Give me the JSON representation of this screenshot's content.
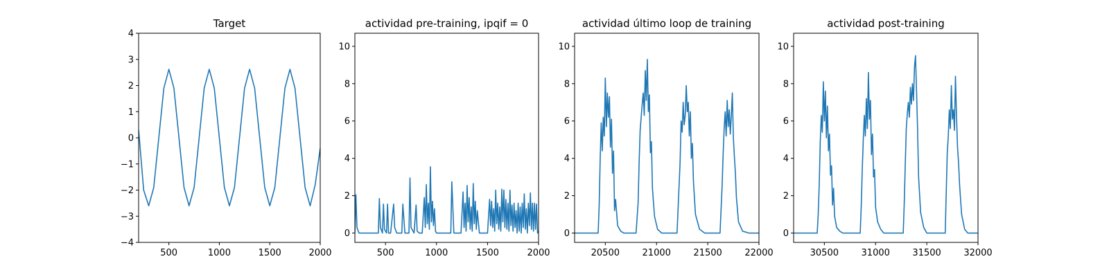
{
  "colors": {
    "line": "#1f77b4",
    "axes": "#000000",
    "background": "#ffffff"
  },
  "chart_data": [
    {
      "type": "line",
      "title": "Target",
      "xlim": [
        200,
        2000
      ],
      "ylim": [
        -4,
        4
      ],
      "xticks": [
        500,
        1000,
        1500,
        2000
      ],
      "yticks": [
        -4,
        -3,
        -2,
        -1,
        0,
        1,
        2,
        3,
        4
      ],
      "grid": false,
      "series": [
        {
          "x": [
            200,
            250,
            300,
            350,
            400,
            450,
            500,
            550,
            600,
            650,
            700,
            750,
            800,
            850,
            900,
            950,
            1000,
            1050,
            1100,
            1150,
            1200,
            1250,
            1300,
            1350,
            1400,
            1450,
            1500,
            1550,
            1600,
            1650,
            1700,
            1750,
            1800,
            1850,
            1900,
            1950,
            2000
          ],
          "y": [
            0.3,
            -2.0,
            -2.6,
            -1.9,
            0.0,
            1.9,
            2.62,
            1.9,
            0.0,
            -1.9,
            -2.6,
            -1.9,
            0.0,
            1.9,
            2.62,
            1.9,
            0.0,
            -1.9,
            -2.6,
            -1.9,
            0.0,
            1.9,
            2.62,
            1.9,
            0.0,
            -1.9,
            -2.6,
            -1.9,
            0.0,
            1.9,
            2.62,
            1.9,
            0.0,
            -1.9,
            -2.6,
            -1.8,
            -0.4
          ]
        }
      ]
    },
    {
      "type": "line",
      "title": "actividad pre-training, ipqif = 0",
      "xlim": [
        200,
        2000
      ],
      "ylim": [
        -0.5,
        10.7
      ],
      "xticks": [
        500,
        1000,
        1500,
        2000
      ],
      "yticks": [
        0,
        2,
        4,
        6,
        8,
        10
      ],
      "grid": false,
      "series": [
        {
          "x": [
            200,
            210,
            220,
            240,
            430,
            440,
            450,
            470,
            480,
            490,
            510,
            520,
            530,
            550,
            580,
            590,
            610,
            660,
            670,
            690,
            730,
            740,
            750,
            780,
            800,
            810,
            830,
            860,
            880,
            890,
            900,
            910,
            920,
            930,
            940,
            950,
            960,
            970,
            980,
            990,
            1000,
            1020,
            1140,
            1150,
            1170,
            1240,
            1260,
            1270,
            1280,
            1290,
            1300,
            1310,
            1320,
            1330,
            1340,
            1350,
            1360,
            1370,
            1380,
            1390,
            1400,
            1420,
            1500,
            1520,
            1530,
            1540,
            1550,
            1560,
            1570,
            1580,
            1590,
            1600,
            1610,
            1620,
            1630,
            1640,
            1650,
            1660,
            1670,
            1680,
            1690,
            1700,
            1710,
            1720,
            1730,
            1740,
            1750,
            1760,
            1770,
            1780,
            1790,
            1800,
            1810,
            1820,
            1830,
            1840,
            1850,
            1860,
            1870,
            1880,
            1890,
            1900,
            1910,
            1920,
            1930,
            1940,
            1950,
            1960,
            1970,
            1980,
            1990,
            2000
          ],
          "y": [
            0.0,
            2.05,
            0.3,
            0.0,
            0.0,
            1.85,
            0.3,
            0.0,
            1.55,
            0.2,
            0.0,
            1.55,
            0.0,
            0.0,
            1.55,
            0.3,
            0.0,
            0.0,
            1.55,
            0.0,
            0.0,
            2.95,
            0.3,
            0.0,
            1.5,
            0.1,
            0.0,
            0.0,
            1.9,
            0.3,
            2.6,
            0.5,
            1.6,
            0.2,
            3.55,
            0.6,
            1.7,
            0.4,
            1.3,
            0.1,
            0.0,
            0.0,
            0.0,
            2.75,
            0.0,
            0.0,
            2.2,
            0.3,
            1.6,
            0.1,
            2.55,
            0.6,
            1.9,
            0.2,
            1.4,
            0.1,
            2.65,
            0.5,
            1.7,
            0.2,
            1.2,
            0.0,
            0.0,
            1.8,
            0.4,
            1.7,
            0.3,
            1.3,
            0.1,
            2.3,
            0.5,
            1.6,
            0.2,
            1.4,
            0.1,
            2.35,
            0.6,
            2.3,
            0.3,
            1.8,
            0.2,
            1.6,
            0.1,
            2.3,
            0.4,
            1.5,
            0.1,
            1.6,
            0.3,
            1.2,
            0.0,
            1.6,
            0.1,
            1.4,
            0.0,
            1.6,
            0.3,
            2.1,
            0.2,
            1.3,
            0.0,
            1.6,
            0.4,
            2.15,
            0.2,
            1.6,
            0.1,
            1.6,
            0.2,
            1.55,
            0.0,
            0.1
          ]
        }
      ]
    },
    {
      "type": "line",
      "title": "actividad último loop de training",
      "xlim": [
        20200,
        22000
      ],
      "ylim": [
        -0.5,
        10.7
      ],
      "xticks": [
        20500,
        21000,
        21500,
        22000
      ],
      "yticks": [
        0,
        2,
        4,
        6,
        8,
        10
      ],
      "grid": false,
      "series": [
        {
          "x": [
            20200,
            20430,
            20440,
            20450,
            20460,
            20470,
            20480,
            20490,
            20500,
            20510,
            20520,
            20530,
            20540,
            20550,
            20560,
            20570,
            20580,
            20590,
            20600,
            20620,
            20650,
            20680,
            20800,
            20820,
            20830,
            20840,
            20850,
            20860,
            20870,
            20880,
            20890,
            20900,
            20910,
            20920,
            20930,
            20940,
            20950,
            20960,
            20980,
            21010,
            21050,
            21200,
            21230,
            21240,
            21250,
            21260,
            21270,
            21280,
            21290,
            21300,
            21310,
            21320,
            21330,
            21340,
            21350,
            21360,
            21380,
            21420,
            21470,
            21620,
            21640,
            21650,
            21660,
            21670,
            21680,
            21690,
            21700,
            21710,
            21720,
            21730,
            21740,
            21750,
            21760,
            21770,
            21780,
            21800,
            21840,
            21900,
            22000
          ],
          "y": [
            0.0,
            0.0,
            1.5,
            4.0,
            5.9,
            4.4,
            6.2,
            5.2,
            8.3,
            5.7,
            7.5,
            6.2,
            7.3,
            4.6,
            6.1,
            3.2,
            4.4,
            1.2,
            1.8,
            0.4,
            0.1,
            0.0,
            0.0,
            1.6,
            3.8,
            5.5,
            6.2,
            6.9,
            7.5,
            6.3,
            8.7,
            7.1,
            9.3,
            6.5,
            7.4,
            4.3,
            4.9,
            2.4,
            0.9,
            0.2,
            0.0,
            0.0,
            3.8,
            6.0,
            5.4,
            7.0,
            5.8,
            6.3,
            7.9,
            6.5,
            7.0,
            5.2,
            6.5,
            4.0,
            4.8,
            2.8,
            1.0,
            0.2,
            0.0,
            0.0,
            2.5,
            4.2,
            5.6,
            6.5,
            5.2,
            7.1,
            5.7,
            6.6,
            5.3,
            6.3,
            7.5,
            5.1,
            4.1,
            3.2,
            1.9,
            0.6,
            0.1,
            0.0,
            0.0
          ]
        }
      ]
    },
    {
      "type": "line",
      "title": "actividad post-training",
      "xlim": [
        30200,
        32000
      ],
      "ylim": [
        -0.5,
        10.7
      ],
      "xticks": [
        30500,
        31000,
        31500,
        32000
      ],
      "yticks": [
        0,
        2,
        4,
        6,
        8,
        10
      ],
      "grid": false,
      "series": [
        {
          "x": [
            30200,
            30430,
            30440,
            30450,
            30460,
            30470,
            30480,
            30490,
            30500,
            30510,
            30520,
            30530,
            30540,
            30550,
            30560,
            30570,
            30580,
            30590,
            30600,
            30620,
            30650,
            30680,
            30850,
            30860,
            30870,
            30880,
            30890,
            30900,
            30910,
            30920,
            30930,
            30940,
            30950,
            30960,
            30970,
            30980,
            30990,
            31000,
            31020,
            31050,
            31080,
            31270,
            31280,
            31290,
            31300,
            31310,
            31320,
            31330,
            31340,
            31350,
            31360,
            31370,
            31380,
            31390,
            31400,
            31410,
            31420,
            31440,
            31470,
            31500,
            31680,
            31690,
            31700,
            31710,
            31720,
            31730,
            31740,
            31750,
            31760,
            31770,
            31780,
            31790,
            31800,
            31810,
            31820,
            31840,
            31870,
            31900,
            32000
          ],
          "y": [
            0.0,
            0.0,
            1.0,
            2.6,
            4.9,
            6.3,
            5.4,
            8.1,
            6.0,
            7.6,
            5.1,
            6.8,
            4.4,
            5.3,
            3.1,
            3.6,
            1.5,
            2.4,
            0.9,
            0.3,
            0.1,
            0.0,
            0.0,
            1.4,
            3.4,
            5.0,
            6.3,
            5.2,
            7.2,
            5.6,
            8.6,
            6.1,
            7.1,
            4.2,
            5.3,
            3.0,
            3.4,
            1.4,
            0.6,
            0.2,
            0.0,
            0.0,
            1.6,
            3.7,
            5.6,
            6.4,
            7.0,
            6.2,
            7.8,
            6.9,
            8.0,
            7.1,
            8.9,
            9.5,
            7.6,
            5.6,
            3.0,
            1.1,
            0.3,
            0.0,
            0.0,
            2.2,
            4.3,
            5.2,
            6.6,
            5.6,
            7.9,
            6.1,
            6.6,
            5.5,
            8.4,
            6.3,
            4.6,
            3.8,
            2.6,
            1.0,
            0.2,
            0.0,
            0.0
          ]
        }
      ]
    }
  ]
}
